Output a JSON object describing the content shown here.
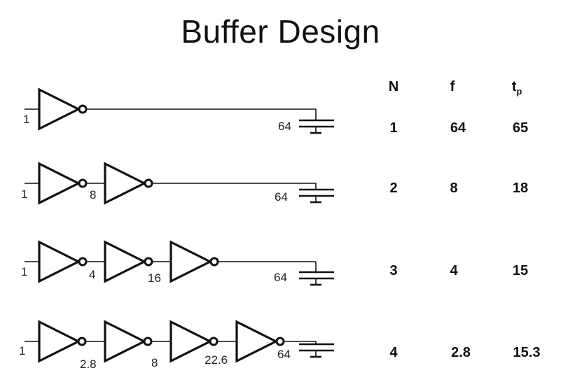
{
  "title": "Buffer Design",
  "table": {
    "headers": {
      "n": "N",
      "f": "f",
      "tp_main": "t",
      "tp_sub": "p"
    },
    "rows": [
      {
        "n": "1",
        "f": "64",
        "tp": "65"
      },
      {
        "n": "2",
        "f": "8",
        "tp": "18"
      },
      {
        "n": "3",
        "f": "4",
        "tp": "15"
      },
      {
        "n": "4",
        "f": "2.8",
        "tp": "15.3"
      }
    ]
  },
  "chains": [
    {
      "input_label": "1",
      "stage_labels": [],
      "load_label": "64"
    },
    {
      "input_label": "1",
      "stage_labels": [
        "8"
      ],
      "load_label": "64"
    },
    {
      "input_label": "1",
      "stage_labels": [
        "4",
        "16"
      ],
      "load_label": "64"
    },
    {
      "input_label": "1",
      "stage_labels": [
        "2.8",
        "8",
        "22.6"
      ],
      "load_label": "64"
    }
  ]
}
